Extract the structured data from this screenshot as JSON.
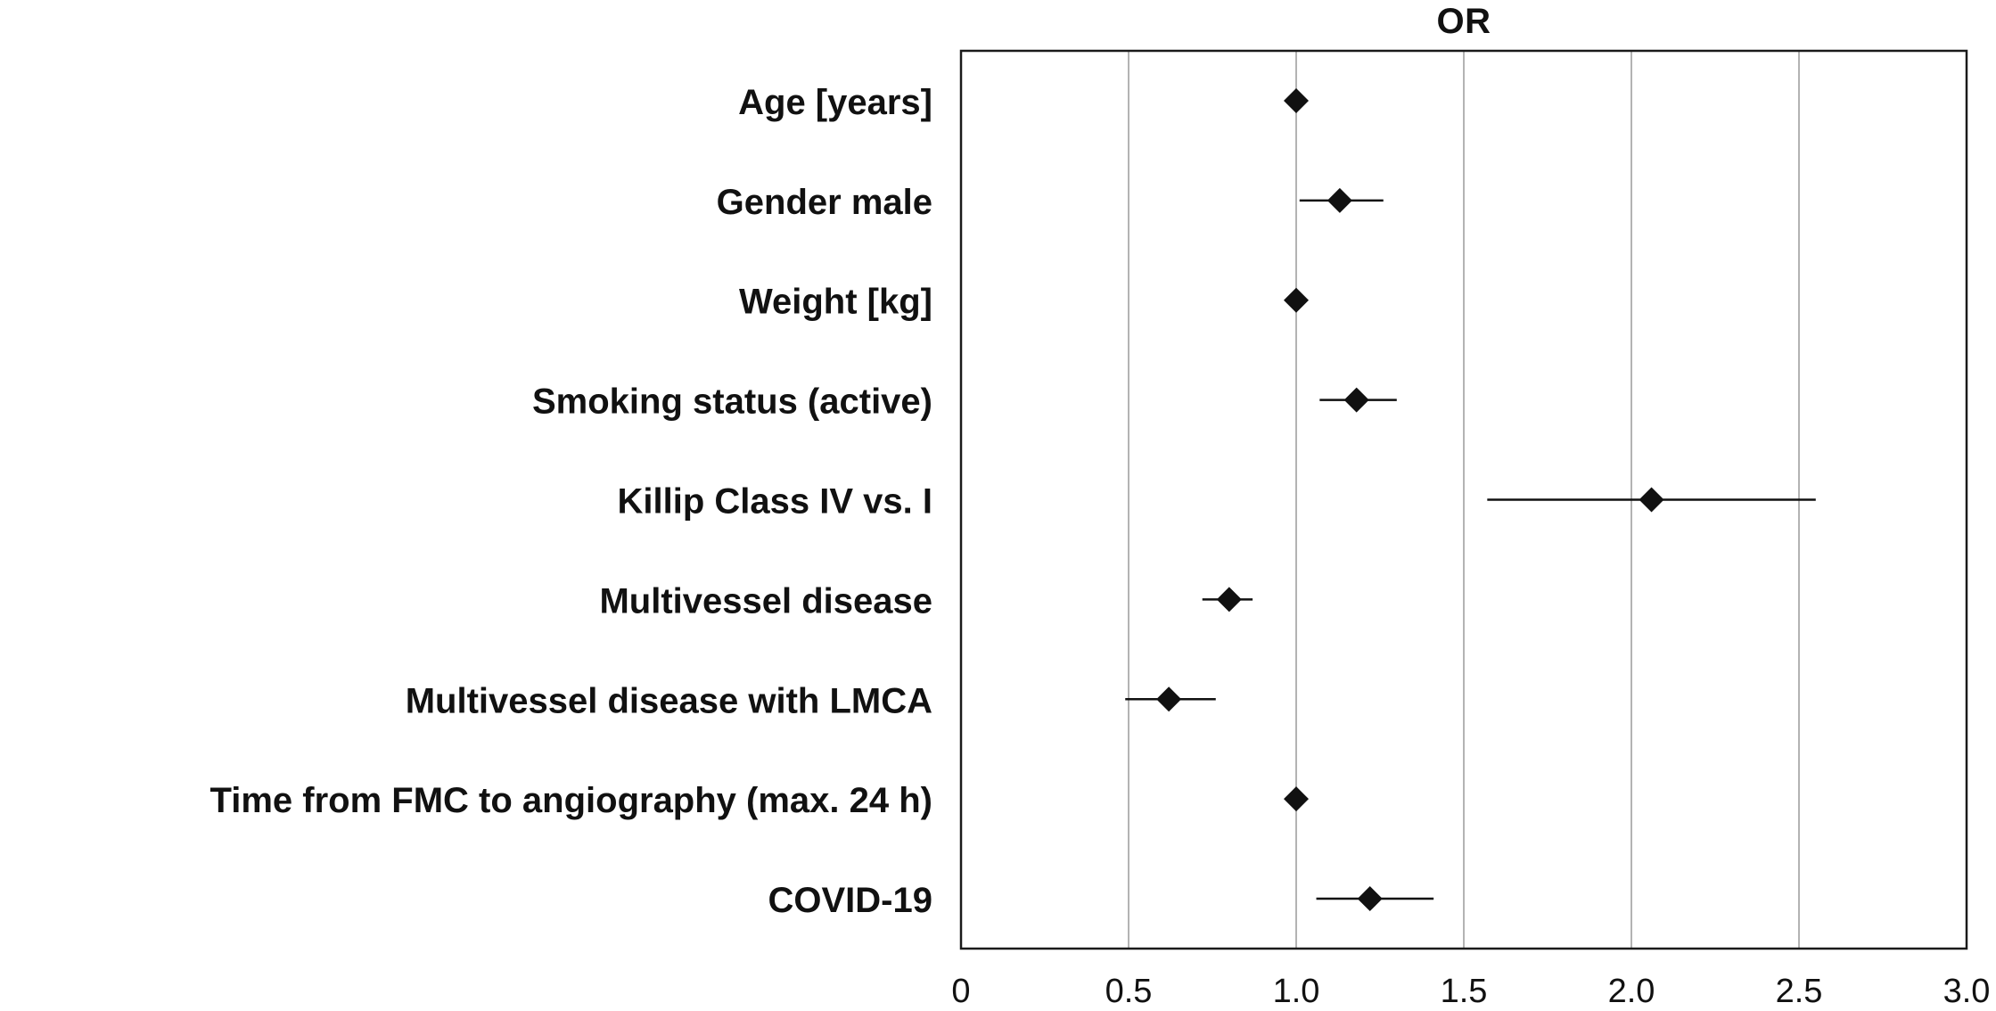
{
  "chart_data": {
    "type": "scatter",
    "subtype": "forest-plot",
    "title": "OR",
    "xlabel": "",
    "ylabel": "",
    "xlim": [
      0,
      3.0
    ],
    "xticks": [
      0,
      0.5,
      1.0,
      1.5,
      2.0,
      2.5,
      3.0
    ],
    "xtick_labels": [
      "0",
      "0.5",
      "1.0",
      "1.5",
      "2.0",
      "2.5",
      "3.0"
    ],
    "grid": "vertical",
    "legend": "none",
    "colors": {
      "marker": "#111111",
      "ci_line": "#111111",
      "axis": "#1a1a1a",
      "grid": "#b3b3b3",
      "background": "#ffffff"
    },
    "rows": [
      {
        "label": "Age [years]",
        "or": 1.0,
        "ci_low": 0.99,
        "ci_high": 1.01
      },
      {
        "label": "Gender male",
        "or": 1.13,
        "ci_low": 1.01,
        "ci_high": 1.26
      },
      {
        "label": "Weight [kg]",
        "or": 1.0,
        "ci_low": 0.99,
        "ci_high": 1.01
      },
      {
        "label": "Smoking status (active)",
        "or": 1.18,
        "ci_low": 1.07,
        "ci_high": 1.3
      },
      {
        "label": "Killip Class IV vs. I",
        "or": 2.06,
        "ci_low": 1.57,
        "ci_high": 2.55
      },
      {
        "label": "Multivessel disease",
        "or": 0.8,
        "ci_low": 0.72,
        "ci_high": 0.87
      },
      {
        "label": "Multivessel disease with LMCA",
        "or": 0.62,
        "ci_low": 0.49,
        "ci_high": 0.76
      },
      {
        "label": "Time from FMC to angiography (max. 24 h)",
        "or": 1.0,
        "ci_low": 0.99,
        "ci_high": 1.01
      },
      {
        "label": "COVID-19",
        "or": 1.22,
        "ci_low": 1.06,
        "ci_high": 1.41
      }
    ]
  }
}
